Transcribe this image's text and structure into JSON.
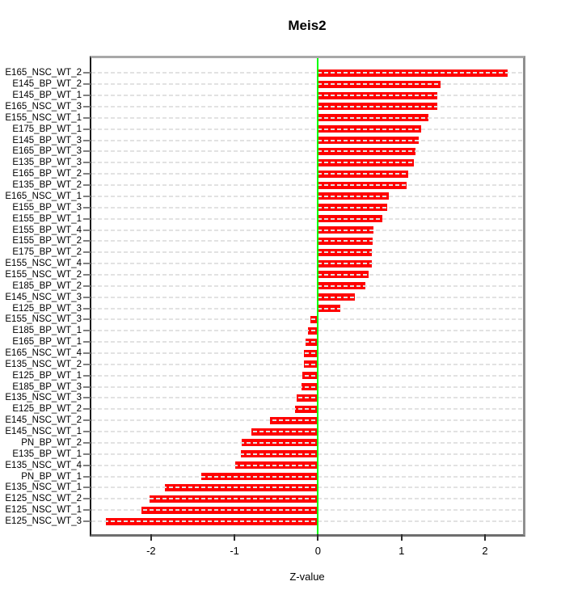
{
  "title": "Meis2",
  "chart_data": {
    "type": "bar",
    "orientation": "horizontal",
    "title": "Meis2",
    "xlabel": "Z-value",
    "ylabel": "",
    "legend": null,
    "grid": "horizontal-dashed",
    "xlim": [
      -2.715,
      2.455
    ],
    "x_ticks": [
      -2,
      -1,
      0,
      1,
      2
    ],
    "zero_reference_line": 0,
    "categories": [
      "E165_NSC_WT_2",
      "E145_BP_WT_2",
      "E145_BP_WT_1",
      "E165_NSC_WT_3",
      "E155_NSC_WT_1",
      "E175_BP_WT_1",
      "E145_BP_WT_3",
      "E165_BP_WT_3",
      "E135_BP_WT_3",
      "E165_BP_WT_2",
      "E135_BP_WT_2",
      "E165_NSC_WT_1",
      "E155_BP_WT_3",
      "E155_BP_WT_1",
      "E155_BP_WT_4",
      "E155_BP_WT_2",
      "E175_BP_WT_2",
      "E155_NSC_WT_4",
      "E155_NSC_WT_2",
      "E185_BP_WT_2",
      "E145_NSC_WT_3",
      "E125_BP_WT_3",
      "E155_NSC_WT_3",
      "E185_BP_WT_1",
      "E165_BP_WT_1",
      "E165_NSC_WT_4",
      "E135_NSC_WT_2",
      "E125_BP_WT_1",
      "E185_BP_WT_3",
      "E135_NSC_WT_3",
      "E125_BP_WT_2",
      "E145_NSC_WT_2",
      "E145_NSC_WT_1",
      "PN_BP_WT_2",
      "E135_BP_WT_1",
      "E135_NSC_WT_4",
      "PN_BP_WT_1",
      "E135_NSC_WT_1",
      "E125_NSC_WT_2",
      "E125_NSC_WT_1",
      "E125_NSC_WT_3"
    ],
    "values": [
      2.27,
      1.47,
      1.43,
      1.43,
      1.32,
      1.24,
      1.21,
      1.17,
      1.15,
      1.08,
      1.06,
      0.85,
      0.83,
      0.77,
      0.66,
      0.65,
      0.64,
      0.64,
      0.61,
      0.57,
      0.44,
      0.27,
      -0.09,
      -0.12,
      -0.15,
      -0.17,
      -0.17,
      -0.19,
      -0.2,
      -0.26,
      -0.28,
      -0.58,
      -0.8,
      -0.91,
      -0.92,
      -0.99,
      -1.4,
      -1.83,
      -2.02,
      -2.11,
      -2.54
    ],
    "colors": {
      "bar": "#ff0000",
      "zero_line": "#00ff00",
      "grid": "#e2e2e2",
      "background": "#ffffff"
    }
  }
}
